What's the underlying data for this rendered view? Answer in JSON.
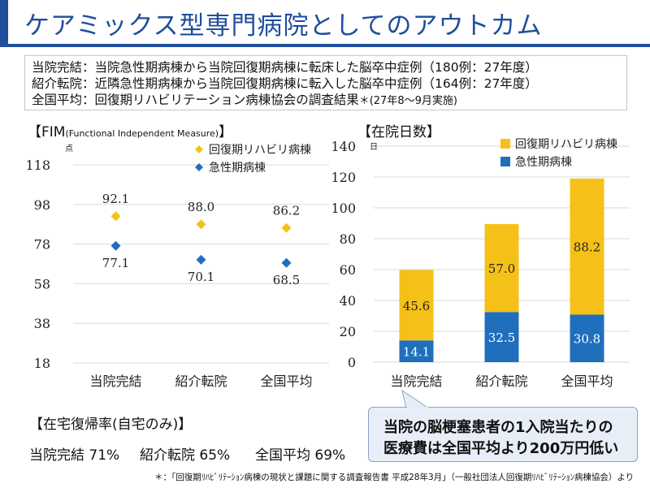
{
  "title": "ケアミックス型専門病院としてのアウトカム",
  "definitions": [
    "当院完結：当院急性期病棟から当院回復期病棟に転床した脳卒中症例（180例：27年度）",
    "紹介転院：近隣急性期病棟から当院回復期病棟に転入した脳卒中症例（164例：27年度）",
    "全国平均：回復期リハビリテーション病棟協会の調査結果",
    "＊",
    "(27年8〜9月実施)"
  ],
  "fim_title": "【FIM",
  "fim_title_sub": "(Functional Independent Measure)",
  "fim_title_close": "】",
  "stay_title": "【在院日数】",
  "home_title": "【在宅復帰率(自宅のみ)】",
  "home_rates": [
    "当院完結 71%",
    "紹介転院 65%",
    "全国平均 69%"
  ],
  "callout": {
    "line1": "当院の脳梗塞患者の1入院当たりの",
    "line2": "医療費は全国平均より200万円低い"
  },
  "footnote": "＊：「回復期ﾘﾊﾋﾞﾘﾃｰｼｮﾝ病棟の現状と課題に関する調査報告書 平成28年3月」（一般社団法人回復期ﾘﾊﾋﾞﾘﾃｰｼｮﾝ病棟協会）より",
  "colors": {
    "title_blue": "#1f4e9c",
    "rehab_orange": "#f5c118",
    "acute_blue": "#1f6fbd"
  },
  "chart_data": [
    {
      "type": "scatter",
      "title": "【FIM(Functional Independent Measure)】",
      "ylabel": "点",
      "ylim": [
        18,
        118
      ],
      "yticks": [
        18,
        38,
        58,
        78,
        98,
        118
      ],
      "categories": [
        "当院完結",
        "紹介転院",
        "全国平均"
      ],
      "series": [
        {
          "name": "回復期リハビリ病棟",
          "values": [
            92.1,
            88.0,
            86.2
          ],
          "labels": [
            "92.1",
            "88.0",
            "86.2"
          ],
          "color": "#f5c118"
        },
        {
          "name": "急性期病棟",
          "values": [
            77.1,
            70.1,
            68.5
          ],
          "labels": [
            "77.1",
            "70.1",
            "68.5"
          ],
          "color": "#1f6fbd"
        }
      ],
      "legend": "top-right",
      "grid": "horizontal"
    },
    {
      "type": "bar",
      "stacked": true,
      "title": "【在院日数】",
      "ylabel": "日",
      "ylim": [
        0,
        140
      ],
      "yticks": [
        0,
        20,
        40,
        60,
        80,
        100,
        120,
        140
      ],
      "categories": [
        "当院完結",
        "紹介転院",
        "全国平均"
      ],
      "series": [
        {
          "name": "急性期病棟",
          "values": [
            14.1,
            32.5,
            30.8
          ],
          "labels": [
            "14.1",
            "32.5",
            "30.8"
          ],
          "color": "#1f6fbd"
        },
        {
          "name": "回復期リハビリ病棟",
          "values": [
            45.6,
            57.0,
            88.2
          ],
          "labels": [
            "45.6",
            "57.0",
            "88.2"
          ],
          "color": "#f5c118"
        }
      ],
      "legend": "top-right",
      "grid": "horizontal"
    }
  ]
}
